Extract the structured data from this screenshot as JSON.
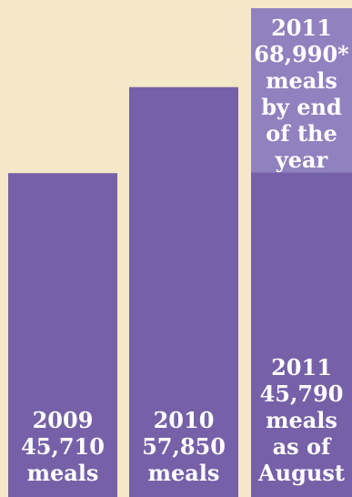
{
  "chart_data": {
    "type": "bar",
    "categories": [
      "2009",
      "2010",
      "2011"
    ],
    "values": [
      45710,
      57850,
      45790
    ],
    "projection": {
      "category": "2011",
      "value": 68990
    },
    "ylim": [
      0,
      68990
    ],
    "title": "",
    "xlabel": "",
    "ylabel": "",
    "grid": false,
    "colors": {
      "bar": "#7661a8",
      "projection": "#9281bf",
      "background": "#f4e8c8",
      "label": "#ffffff"
    },
    "labels": {
      "bar_2009": [
        "2009",
        "45,710",
        "meals"
      ],
      "bar_2010": [
        "2010",
        "57,850",
        "meals"
      ],
      "bar_2011_actual": [
        "2011",
        "45,790",
        "meals",
        "as of",
        "August"
      ],
      "bar_2011_projection": [
        "2011",
        "68,990*",
        "meals",
        "by end",
        "of the",
        "year"
      ]
    }
  }
}
